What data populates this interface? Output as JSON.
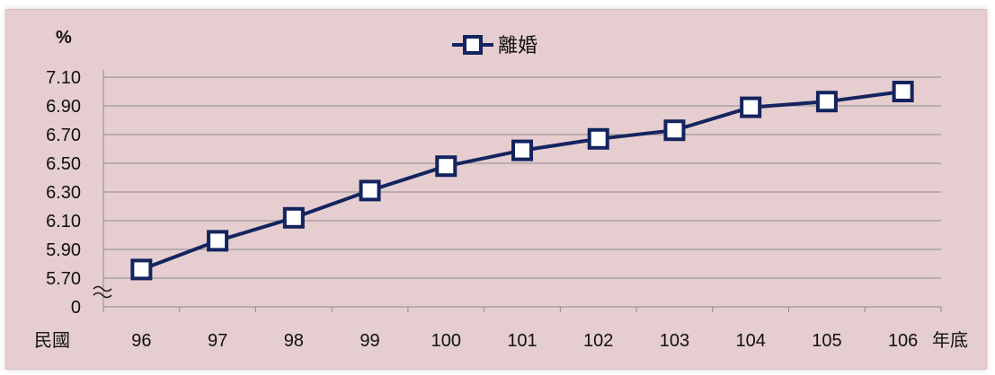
{
  "chart_data": {
    "type": "line",
    "title": "",
    "ylabel": "%",
    "xlabel_left": "民國",
    "xlabel_right": "年底",
    "categories": [
      "96",
      "97",
      "98",
      "99",
      "100",
      "101",
      "102",
      "103",
      "104",
      "105",
      "106"
    ],
    "series": [
      {
        "name": "離婚",
        "values": [
          5.76,
          5.96,
          6.12,
          6.31,
          6.48,
          6.59,
          6.67,
          6.73,
          6.89,
          6.93,
          7.0
        ]
      }
    ],
    "y_ticks": [
      "7.10",
      "6.90",
      "6.70",
      "6.50",
      "6.30",
      "6.10",
      "5.90",
      "5.70",
      "0"
    ],
    "ylim": [
      5.62,
      7.1
    ],
    "axis_break": true,
    "grid": true,
    "legend_position": "top-center",
    "colors": {
      "series": "#13245e",
      "marker_fill": "#ffffff",
      "background": "#e6cdd0",
      "grid": "#8c8c8c"
    }
  }
}
